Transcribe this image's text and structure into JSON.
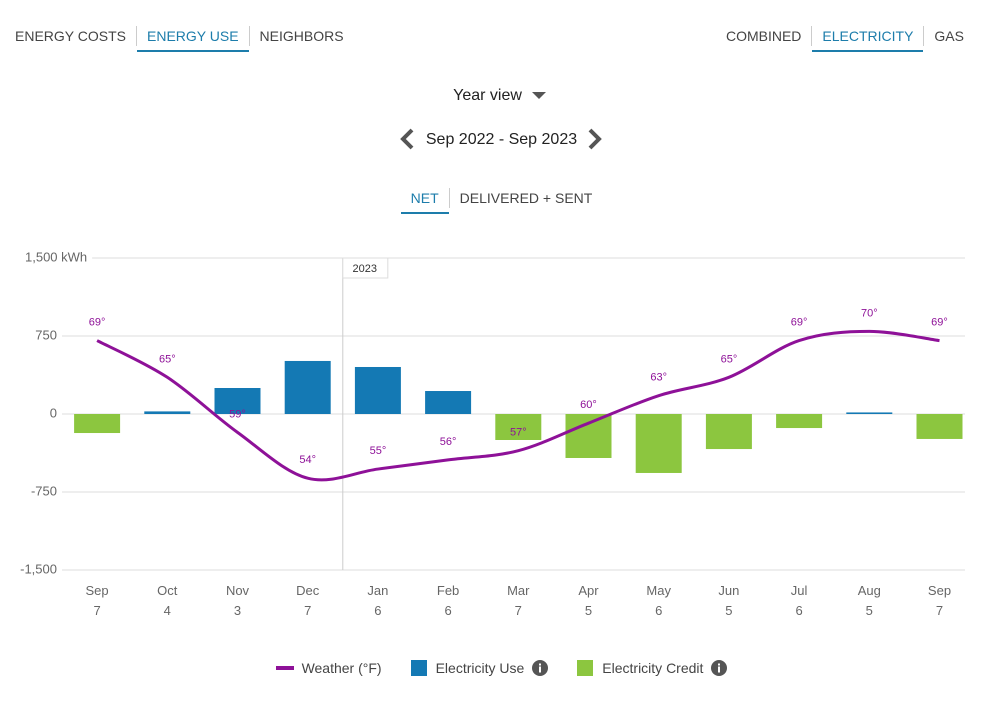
{
  "nav": {
    "tabs": [
      "ENERGY COSTS",
      "ENERGY USE",
      "NEIGHBORS"
    ],
    "active_tab": 1,
    "fuel_tabs": [
      "COMBINED",
      "ELECTRICITY",
      "GAS"
    ],
    "active_fuel_tab": 1
  },
  "view": "Year view",
  "date_range": "Sep 2022 - Sep 2023",
  "mode_tabs": [
    "NET",
    "DELIVERED + SENT"
  ],
  "active_mode_tab": 0,
  "chart_data": {
    "type": "bar",
    "categories": [
      "Sep",
      "Oct",
      "Nov",
      "Dec",
      "Jan",
      "Feb",
      "Mar",
      "Apr",
      "May",
      "Jun",
      "Jul",
      "Aug",
      "Sep"
    ],
    "category_days": [
      7,
      4,
      3,
      7,
      6,
      6,
      7,
      5,
      6,
      5,
      6,
      5,
      7
    ],
    "year_marker": {
      "text": "2023",
      "before_category": 4
    },
    "ylim": [
      -1500,
      1500
    ],
    "yticks": [
      {
        "value": 1500,
        "label": "1,500 kWh"
      },
      750,
      0,
      -750,
      {
        "value": -1500,
        "label": "-1,500"
      }
    ],
    "y2lim": [
      44,
      78
    ],
    "grid": true,
    "series": [
      {
        "name": "Weather (°F)",
        "type": "line",
        "axis": "y2",
        "color": "#8e1198",
        "values": [
          69,
          65,
          59,
          54,
          55,
          56,
          57,
          60,
          63,
          65,
          69,
          70,
          69
        ],
        "value_labels": [
          "69°",
          "65°",
          "59°",
          "54°",
          "55°",
          "56°",
          "57°",
          "60°",
          "63°",
          "65°",
          "69°",
          "70°",
          "69°"
        ]
      },
      {
        "name": "Electricity Use",
        "type": "bar",
        "color": "#1479b4",
        "info": true,
        "values": [
          null,
          25,
          250,
          510,
          452,
          221,
          null,
          null,
          null,
          null,
          null,
          15,
          null
        ]
      },
      {
        "name": "Electricity Credit",
        "type": "bar",
        "color": "#8cc63f",
        "info": true,
        "values": [
          -183,
          null,
          null,
          null,
          null,
          null,
          -250,
          -423,
          -567,
          -337,
          -135,
          null,
          -240
        ]
      }
    ]
  }
}
